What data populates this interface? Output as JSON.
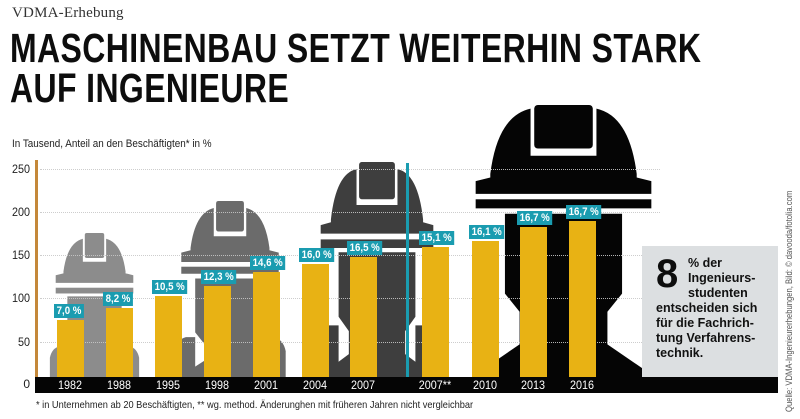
{
  "header": {
    "kicker": "VDMA-Erhebung",
    "title_line1": "MASCHINENBAU SETZT WEITERHIN STARK",
    "title_line2": "AUF INGENIEURE",
    "subtitle": "In Tausend, Anteil an den Beschäftigten* in %"
  },
  "colors": {
    "bar": "#e8b214",
    "label_bg": "#1a9cb0",
    "axis": "#c4883a",
    "divider": "#1a9cb0",
    "base": "#050505",
    "helmet_1": "#8c8c8c",
    "helmet_2": "#6b6b6b",
    "helmet_3": "#3e3e3e",
    "helmet_4": "#050505",
    "infobox_bg": "#dcdfe1"
  },
  "yaxis": {
    "ticks": [
      "250",
      "200",
      "150",
      "100",
      "50",
      "0"
    ]
  },
  "bars": [
    {
      "year": "1982",
      "value": 75,
      "pct": "7,0 %"
    },
    {
      "year": "1988",
      "value": 89,
      "pct": "8,2 %"
    },
    {
      "year": "1995",
      "value": 103,
      "pct": "10,5 %"
    },
    {
      "year": "1998",
      "value": 114,
      "pct": "12,3 %"
    },
    {
      "year": "2001",
      "value": 130,
      "pct": "14,6 %"
    },
    {
      "year": "2004",
      "value": 140,
      "pct": "16,0 %"
    },
    {
      "year": "2007",
      "value": 148,
      "pct": "16,5 %"
    },
    {
      "year": "2007**",
      "value": 159,
      "pct": "15,1 %"
    },
    {
      "year": "2010",
      "value": 166,
      "pct": "16,1 %"
    },
    {
      "year": "2013",
      "value": 182,
      "pct": "16,7 %"
    },
    {
      "year": "2016",
      "value": 189,
      "pct": "16,7 %"
    }
  ],
  "infobox": {
    "big_number": "8",
    "line1": "% der",
    "line2": "Ingenieurs-",
    "line3": "studenten",
    "line4": "entscheiden sich",
    "line5": "für die Fachrich-",
    "line6": "tung Verfahrens-",
    "line7": "technik."
  },
  "footnote": "* in Unternehmen ab 20 Beschäftigten, ** wg. method. Änderunghen mit früheren Jahren nicht vergleichbar",
  "source": "Quelle: VDMA-Ingenieurerhebungen, Bild: © davooda/fotolia.com",
  "chart_data": {
    "type": "bar",
    "title": "MASCHINENBAU SETZT WEITERHIN STARK AUF INGENIEURE",
    "subtitle": "In Tausend, Anteil an den Beschäftigten* in %",
    "xlabel": "",
    "ylabel": "In Tausend",
    "ylim": [
      0,
      250
    ],
    "yticks": [
      0,
      50,
      100,
      150,
      200,
      250
    ],
    "grid": true,
    "categories": [
      "1982",
      "1988",
      "1995",
      "1998",
      "2001",
      "2004",
      "2007",
      "2007**",
      "2010",
      "2013",
      "2016"
    ],
    "series": [
      {
        "name": "Ingenieure (in Tausend)",
        "values": [
          75,
          89,
          103,
          114,
          130,
          140,
          148,
          159,
          166,
          182,
          189
        ]
      },
      {
        "name": "Anteil an den Beschäftigten (%)",
        "values": [
          7.0,
          8.2,
          10.5,
          12.3,
          14.6,
          16.0,
          16.5,
          15.1,
          16.1,
          16.7,
          16.7
        ]
      }
    ],
    "annotations": [
      "Vertical divider between 2007 and 2007** (methodological change)",
      "8 % der Ingenieursstudenten entscheiden sich für die Fachrichtung Verfahrenstechnik."
    ],
    "legend": "none"
  }
}
